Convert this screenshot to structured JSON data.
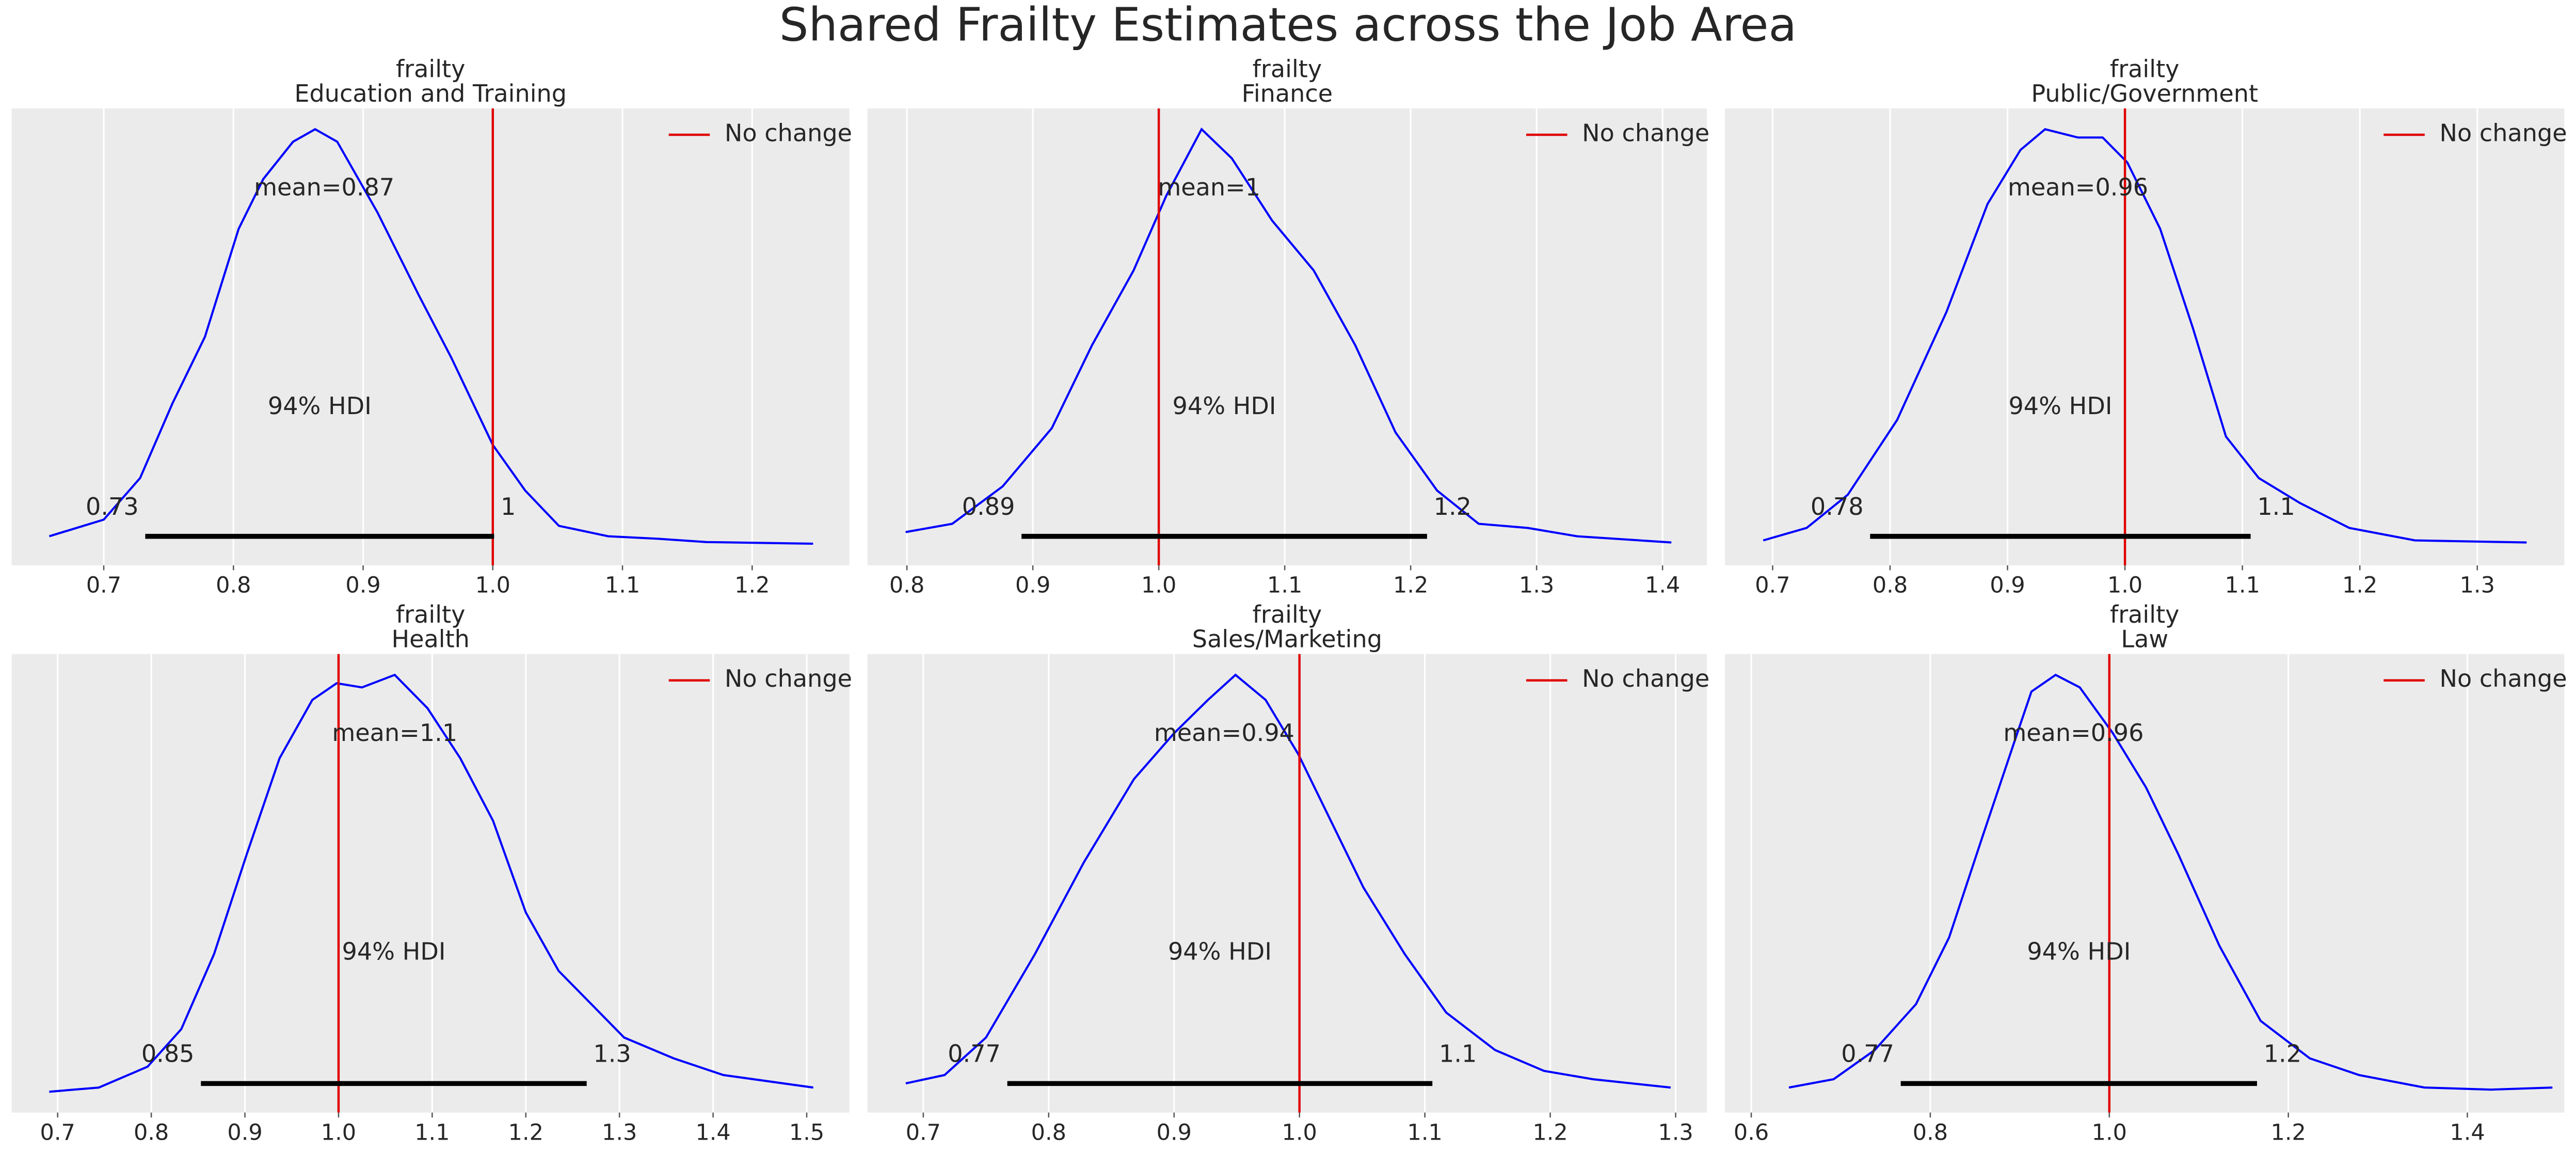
{
  "title": "Shared Frailty Estimates across the Job Area",
  "chart_data": [
    {
      "type": "density",
      "title": "frailty",
      "subtitle": "Education and Training",
      "color": "#0000ff",
      "x": [
        0.658,
        0.7,
        0.728,
        0.753,
        0.778,
        0.804,
        0.823,
        0.846,
        0.863,
        0.88,
        0.911,
        0.943,
        0.968,
        1.0,
        1.025,
        1.051,
        1.089,
        1.127,
        1.165,
        1.247
      ],
      "values": [
        0.02,
        0.06,
        0.16,
        0.34,
        0.5,
        0.76,
        0.88,
        0.97,
        1.0,
        0.97,
        0.8,
        0.6,
        0.45,
        0.24,
        0.13,
        0.045,
        0.02,
        0.014,
        0.006,
        0.002
      ],
      "mean": 0.87,
      "mean_label": "mean=0.87",
      "hdi": [
        0.732,
        1.001
      ],
      "hdi_labels": [
        "0.73",
        "1"
      ],
      "hdi_prob_label": "94% HDI",
      "ref_val": 1,
      "ref_label": "No change",
      "ref_color": "#e00000",
      "xlim": [
        0.629,
        1.275
      ],
      "xticks": [
        0.7,
        0.8,
        0.9,
        {
          "value": 1,
          "label": "1.0"
        },
        1.1,
        1.2
      ],
      "ylim": [
        -0.05,
        1.05
      ],
      "grid": true
    },
    {
      "type": "density",
      "title": "frailty",
      "subtitle": "Finance",
      "color": "#0000ff",
      "x": [
        0.799,
        0.836,
        0.876,
        0.915,
        0.947,
        0.98,
        1.006,
        1.034,
        1.058,
        1.09,
        1.123,
        1.156,
        1.188,
        1.221,
        1.254,
        1.293,
        1.332,
        1.407
      ],
      "values": [
        0.03,
        0.05,
        0.14,
        0.28,
        0.48,
        0.66,
        0.84,
        1.0,
        0.93,
        0.78,
        0.66,
        0.48,
        0.27,
        0.13,
        0.05,
        0.04,
        0.02,
        0.005
      ],
      "mean": 1.04,
      "mean_label": "mean=1",
      "hdi": [
        0.891,
        1.213
      ],
      "hdi_labels": [
        "0.89",
        "1.2"
      ],
      "hdi_prob_label": "94% HDI",
      "ref_val": 1,
      "ref_label": "No change",
      "ref_color": "#e00000",
      "xlim": [
        0.7687,
        1.4352
      ],
      "xticks": [
        0.8,
        0.9,
        {
          "value": 1,
          "label": "1.0"
        },
        1.1,
        1.2,
        1.3,
        1.4
      ],
      "ylim": [
        -0.05,
        1.05
      ],
      "grid": true
    },
    {
      "type": "density",
      "title": "frailty",
      "subtitle": "Public/Government",
      "color": "#0000ff",
      "x": [
        0.692,
        0.729,
        0.764,
        0.806,
        0.848,
        0.883,
        0.911,
        0.932,
        0.96,
        0.981,
        1.002,
        1.03,
        1.058,
        1.086,
        1.114,
        1.149,
        1.191,
        1.247,
        1.342
      ],
      "values": [
        0.01,
        0.04,
        0.12,
        0.3,
        0.56,
        0.82,
        0.95,
        1.0,
        0.98,
        0.98,
        0.92,
        0.76,
        0.52,
        0.26,
        0.16,
        0.1,
        0.04,
        0.01,
        0.005
      ],
      "mean": 0.96,
      "mean_label": "mean=0.96",
      "hdi": [
        0.783,
        1.107
      ],
      "hdi_labels": [
        "0.78",
        "1.1"
      ],
      "hdi_prob_label": "94% HDI",
      "ref_val": 1,
      "ref_label": "No change",
      "ref_color": "#e00000",
      "xlim": [
        0.6594,
        1.3741
      ],
      "xticks": [
        0.7,
        0.8,
        0.9,
        {
          "value": 1,
          "label": "1.0"
        },
        1.1,
        1.2,
        1.3
      ],
      "ylim": [
        -0.05,
        1.05
      ],
      "grid": true
    },
    {
      "type": "density",
      "title": "frailty",
      "subtitle": "Health",
      "color": "#0000ff",
      "x": [
        0.691,
        0.744,
        0.796,
        0.832,
        0.867,
        0.902,
        0.937,
        0.972,
        0.998,
        1.025,
        1.06,
        1.095,
        1.13,
        1.165,
        1.2,
        1.235,
        1.27,
        1.305,
        1.358,
        1.411,
        1.507
      ],
      "values": [
        0.0,
        0.01,
        0.06,
        0.15,
        0.33,
        0.57,
        0.8,
        0.94,
        0.98,
        0.97,
        1.0,
        0.92,
        0.8,
        0.65,
        0.43,
        0.29,
        0.21,
        0.13,
        0.08,
        0.04,
        0.01
      ],
      "mean": 1.06,
      "mean_label": "mean=1.1",
      "hdi": [
        0.853,
        1.265
      ],
      "hdi_labels": [
        "0.85",
        "1.3"
      ],
      "hdi_prob_label": "94% HDI",
      "ref_val": 1,
      "ref_label": "No change",
      "ref_color": "#e00000",
      "xlim": [
        0.6509,
        1.5456
      ],
      "xticks": [
        0.7,
        0.8,
        0.9,
        {
          "value": 1,
          "label": "1.0"
        },
        1.1,
        1.2,
        1.3,
        1.4,
        1.5
      ],
      "ylim": [
        -0.05,
        1.05
      ],
      "grid": true
    },
    {
      "type": "density",
      "title": "frailty",
      "subtitle": "Sales/Marketing",
      "color": "#0000ff",
      "x": [
        0.686,
        0.717,
        0.75,
        0.789,
        0.828,
        0.868,
        0.9,
        0.927,
        0.949,
        0.973,
        0.999,
        1.025,
        1.051,
        1.084,
        1.117,
        1.156,
        1.195,
        1.234,
        1.296
      ],
      "values": [
        0.02,
        0.04,
        0.13,
        0.33,
        0.55,
        0.75,
        0.86,
        0.94,
        1.0,
        0.94,
        0.81,
        0.65,
        0.49,
        0.33,
        0.19,
        0.1,
        0.05,
        0.03,
        0.01
      ],
      "mean": 0.94,
      "mean_label": "mean=0.94",
      "hdi": [
        0.767,
        1.106
      ],
      "hdi_labels": [
        "0.77",
        "1.1"
      ],
      "hdi_prob_label": "94% HDI",
      "ref_val": 1,
      "ref_label": "No change",
      "ref_color": "#e00000",
      "xlim": [
        0.6555,
        1.3249
      ],
      "xticks": [
        0.7,
        0.8,
        0.9,
        {
          "value": 1,
          "label": "1.0"
        },
        1.1,
        1.2,
        1.3
      ],
      "ylim": [
        -0.05,
        1.05
      ],
      "grid": true
    },
    {
      "type": "density",
      "title": "frailty",
      "subtitle": "Law",
      "color": "#0000ff",
      "x": [
        0.642,
        0.692,
        0.738,
        0.784,
        0.821,
        0.858,
        0.894,
        0.913,
        0.94,
        0.967,
        1.004,
        1.041,
        1.077,
        1.123,
        1.169,
        1.224,
        1.279,
        1.352,
        1.426,
        1.495
      ],
      "values": [
        0.01,
        0.03,
        0.1,
        0.21,
        0.37,
        0.61,
        0.84,
        0.96,
        1.0,
        0.97,
        0.86,
        0.73,
        0.57,
        0.35,
        0.17,
        0.08,
        0.04,
        0.01,
        0.005,
        0.01
      ],
      "mean": 0.96,
      "mean_label": "mean=0.96",
      "hdi": [
        0.767,
        1.165
      ],
      "hdi_labels": [
        "0.77",
        "1.2"
      ],
      "hdi_prob_label": "94% HDI",
      "ref_val": 1,
      "ref_label": "No change",
      "ref_color": "#e00000",
      "xlim": [
        0.5706,
        1.5083
      ],
      "xticks": [
        0.6,
        0.8,
        {
          "value": 1,
          "label": "1.0"
        },
        1.2,
        1.4
      ],
      "ylim": [
        -0.05,
        1.05
      ],
      "grid": true
    }
  ]
}
